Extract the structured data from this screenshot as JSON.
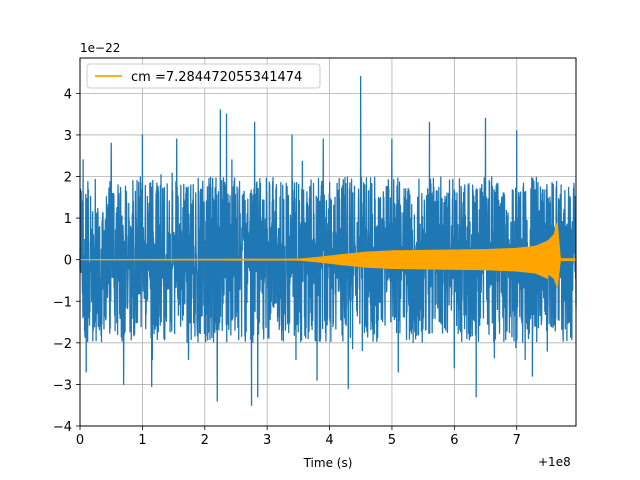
{
  "chart_data": {
    "type": "line",
    "xlabel": "Time (s)",
    "ylabel": "",
    "x_offset_label": "+1e8",
    "y_offset_label": "1e−22",
    "xlim": [
      0,
      7.95
    ],
    "ylim": [
      -4,
      4.85
    ],
    "xticks": [
      0,
      1,
      2,
      3,
      4,
      5,
      6,
      7
    ],
    "xtick_labels": [
      "0",
      "1",
      "2",
      "3",
      "4",
      "5",
      "6",
      "7"
    ],
    "yticks": [
      -4,
      -3,
      -2,
      -1,
      0,
      1,
      2,
      3,
      4
    ],
    "ytick_labels": [
      "−4",
      "−3",
      "−2",
      "−1",
      "0",
      "1",
      "2",
      "3",
      "4"
    ],
    "grid": true,
    "legend_position": "top-left",
    "colors": {
      "noise": "#1f77b4",
      "signal": "#ffa500"
    },
    "series": [
      {
        "name": "",
        "kind": "noise",
        "description_values": {
          "band_upper": 1.9,
          "band_lower": -1.9,
          "peak_x": [
            0.05,
            0.5,
            1.0,
            1.55,
            2.25,
            2.35,
            2.8,
            3.4,
            3.9,
            4.4,
            4.5,
            5.0,
            5.6,
            6.3,
            6.5,
            7.0,
            7.6
          ],
          "peak_y": [
            2.4,
            2.8,
            3.0,
            2.9,
            3.6,
            3.5,
            3.3,
            3.0,
            2.9,
            3.4,
            4.4,
            2.9,
            3.3,
            3.0,
            3.4,
            3.1,
            3.0
          ],
          "trough_x": [
            0.1,
            0.7,
            1.15,
            2.2,
            2.75,
            2.85,
            3.8,
            4.3,
            5.1,
            6.0,
            6.35,
            7.25
          ],
          "trough_y": [
            -2.7,
            -3.0,
            -3.05,
            -3.4,
            -3.5,
            -3.3,
            -2.9,
            -3.1,
            -2.7,
            -2.6,
            -3.3,
            -2.8
          ]
        }
      },
      {
        "name": "cm =7.284472055341474",
        "kind": "chirp",
        "envelope_x": [
          0,
          3.5,
          3.8,
          4.2,
          4.6,
          5.0,
          5.5,
          6.0,
          6.5,
          7.0,
          7.3,
          7.5,
          7.6,
          7.65,
          7.7,
          7.95
        ],
        "envelope_y": [
          0.0,
          0.01,
          0.05,
          0.12,
          0.18,
          0.21,
          0.22,
          0.23,
          0.24,
          0.27,
          0.32,
          0.45,
          0.6,
          0.9,
          0.02,
          0.02
        ]
      }
    ]
  }
}
